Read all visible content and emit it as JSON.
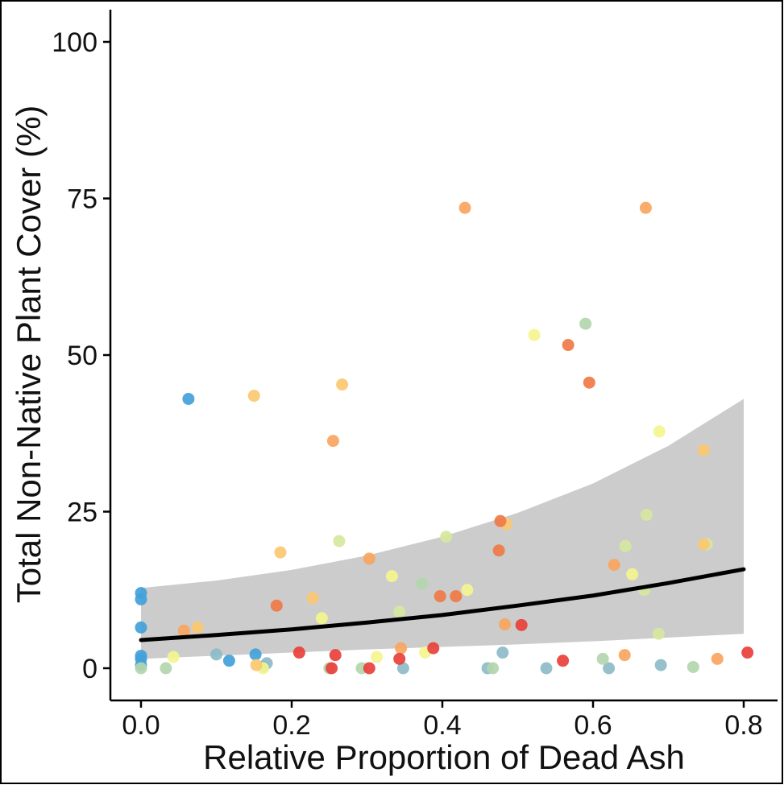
{
  "chart_data": {
    "type": "scatter",
    "xlabel": "Relative Proportion of Dead Ash",
    "ylabel": "Total Non-Native Plant Cover (%)",
    "xlim": [
      -0.04,
      0.84
    ],
    "ylim": [
      -5,
      105
    ],
    "x_ticks": [
      {
        "value": 0.0,
        "label": "0.0"
      },
      {
        "value": 0.2,
        "label": "0.2"
      },
      {
        "value": 0.4,
        "label": "0.4"
      },
      {
        "value": 0.6,
        "label": "0.6"
      },
      {
        "value": 0.8,
        "label": "0.8"
      }
    ],
    "y_ticks": [
      {
        "value": 0,
        "label": "0"
      },
      {
        "value": 25,
        "label": "25"
      },
      {
        "value": 50,
        "label": "50"
      },
      {
        "value": 75,
        "label": "75"
      },
      {
        "value": 100,
        "label": "100"
      }
    ],
    "grid": false,
    "colors": {
      "red": "#e8403a",
      "orange_red": "#f07a45",
      "orange": "#f8a55e",
      "light_orange": "#fac871",
      "yellow": "#f3f58e",
      "yellow_green": "#d6e8a0",
      "sage": "#b3d6ae",
      "teal": "#8dbcc8",
      "blue": "#43a1d9",
      "trend_line": "#000000",
      "ribbon": "#cccccc"
    },
    "trend_line": {
      "x": [
        0,
        0.1,
        0.2,
        0.3,
        0.4,
        0.5,
        0.6,
        0.7,
        0.8
      ],
      "y": [
        4.5,
        5.3,
        6.2,
        7.3,
        8.5,
        10.0,
        11.6,
        13.6,
        15.8
      ]
    },
    "confidence_band": {
      "x": [
        0,
        0.1,
        0.2,
        0.3,
        0.4,
        0.5,
        0.6,
        0.7,
        0.8
      ],
      "upper": [
        12.8,
        14.0,
        15.7,
        18.0,
        21.0,
        24.8,
        29.5,
        35.5,
        43.0
      ],
      "lower": [
        1.5,
        2.0,
        2.5,
        3.0,
        3.4,
        3.8,
        4.3,
        4.9,
        5.5
      ]
    },
    "series": [
      {
        "color": "blue",
        "points": [
          [
            0.0,
            12
          ],
          [
            0.0,
            11
          ],
          [
            0.0,
            6.5
          ],
          [
            0.0,
            2
          ],
          [
            0.0,
            1.5
          ],
          [
            0.0,
            0.5
          ],
          [
            0.063,
            43
          ],
          [
            0.117,
            1.2
          ],
          [
            0.152,
            2.2
          ]
        ]
      },
      {
        "color": "teal",
        "points": [
          [
            0.1,
            2.2
          ],
          [
            0.167,
            0.8
          ],
          [
            0.163,
            0.3
          ],
          [
            0.348,
            0
          ],
          [
            0.46,
            0
          ],
          [
            0.48,
            2.5
          ],
          [
            0.538,
            0
          ],
          [
            0.621,
            0
          ],
          [
            0.69,
            0.5
          ]
        ]
      },
      {
        "color": "sage",
        "points": [
          [
            0.0,
            0
          ],
          [
            0.033,
            0
          ],
          [
            0.293,
            0
          ],
          [
            0.373,
            13.5
          ],
          [
            0.467,
            0
          ],
          [
            0.59,
            55
          ],
          [
            0.613,
            1.5
          ],
          [
            0.733,
            0.2
          ],
          [
            0.25,
            0
          ]
        ]
      },
      {
        "color": "yellow_green",
        "points": [
          [
            0.263,
            20.3
          ],
          [
            0.343,
            9
          ],
          [
            0.405,
            21
          ],
          [
            0.643,
            19.5
          ],
          [
            0.668,
            12.5
          ],
          [
            0.671,
            24.5
          ],
          [
            0.687,
            5.5
          ],
          [
            0.751,
            19.8
          ]
        ]
      },
      {
        "color": "yellow",
        "points": [
          [
            0.043,
            1.8
          ],
          [
            0.162,
            0
          ],
          [
            0.24,
            8
          ],
          [
            0.313,
            1.8
          ],
          [
            0.333,
            14.7
          ],
          [
            0.377,
            2.5
          ],
          [
            0.433,
            12.5
          ],
          [
            0.522,
            53.2
          ],
          [
            0.652,
            15
          ],
          [
            0.688,
            37.8
          ]
        ]
      },
      {
        "color": "light_orange",
        "points": [
          [
            0.075,
            6.5
          ],
          [
            0.15,
            43.5
          ],
          [
            0.153,
            0.5
          ],
          [
            0.185,
            18.5
          ],
          [
            0.228,
            11.2
          ],
          [
            0.267,
            45.3
          ],
          [
            0.485,
            23
          ],
          [
            0.747,
            34.8
          ],
          [
            0.747,
            19.8
          ]
        ]
      },
      {
        "color": "orange",
        "points": [
          [
            0.057,
            6
          ],
          [
            0.255,
            36.3
          ],
          [
            0.303,
            17.5
          ],
          [
            0.345,
            3.2
          ],
          [
            0.43,
            73.5
          ],
          [
            0.483,
            7
          ],
          [
            0.628,
            16.5
          ],
          [
            0.642,
            2.1
          ],
          [
            0.67,
            73.5
          ],
          [
            0.765,
            1.5
          ]
        ]
      },
      {
        "color": "orange_red",
        "points": [
          [
            0.18,
            10
          ],
          [
            0.397,
            11.5
          ],
          [
            0.418,
            11.5
          ],
          [
            0.475,
            18.8
          ],
          [
            0.477,
            23.5
          ],
          [
            0.567,
            51.6
          ],
          [
            0.595,
            45.6
          ]
        ]
      },
      {
        "color": "red",
        "points": [
          [
            0.21,
            2.5
          ],
          [
            0.258,
            2.1
          ],
          [
            0.253,
            0
          ],
          [
            0.303,
            0
          ],
          [
            0.343,
            1.5
          ],
          [
            0.388,
            3.2
          ],
          [
            0.505,
            6.9
          ],
          [
            0.56,
            1.2
          ],
          [
            0.805,
            2.5
          ]
        ]
      }
    ]
  }
}
